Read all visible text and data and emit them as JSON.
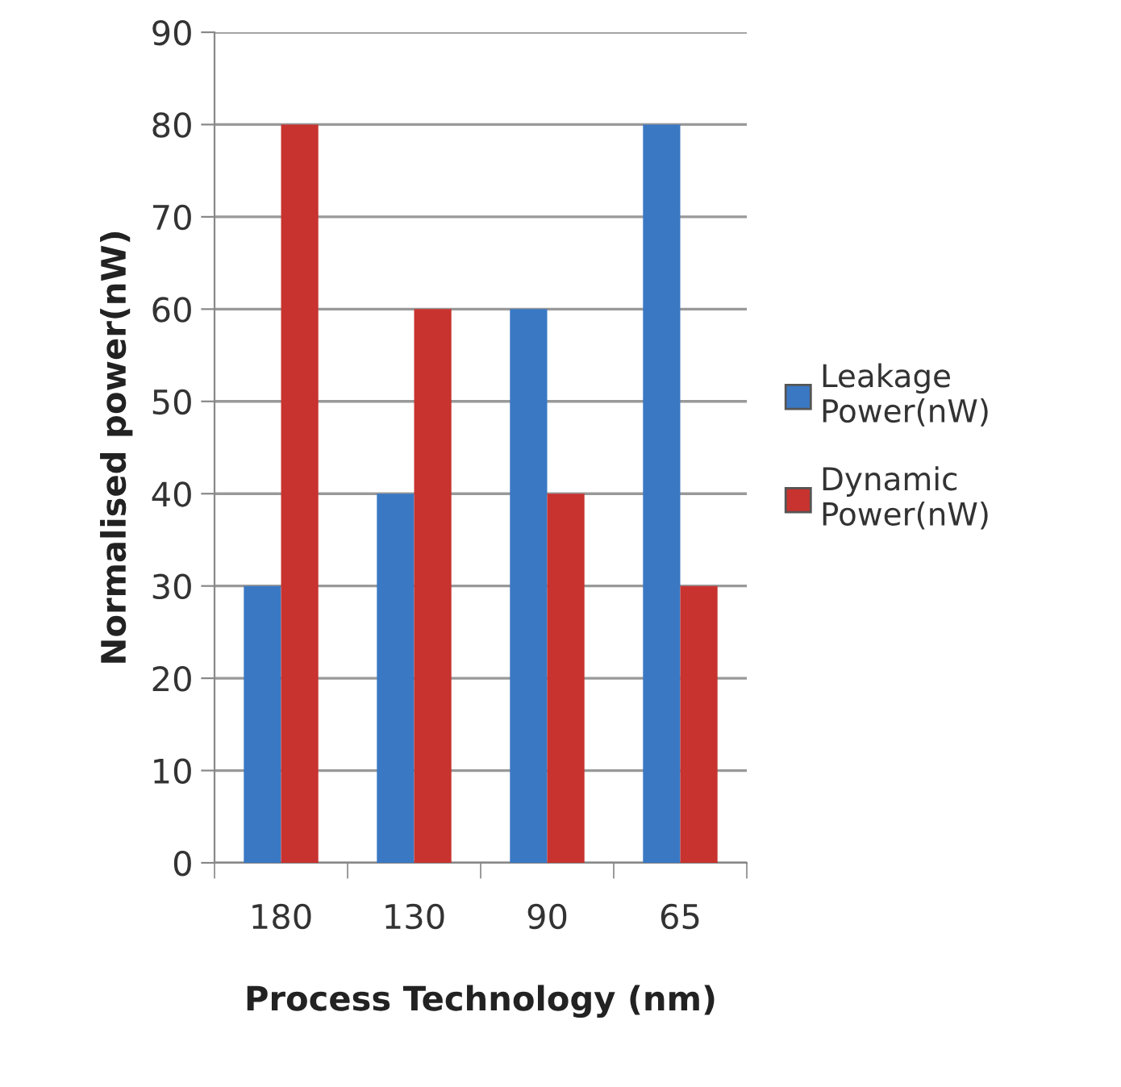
{
  "chart_data": {
    "type": "bar",
    "xlabel": "Process Technology (nm)",
    "ylabel": "Normalised power(nW)",
    "categories": [
      "180",
      "130",
      "90",
      "65"
    ],
    "series": [
      {
        "name": "Leakage\nPower(nW)",
        "color": "#3a78c3",
        "values": [
          30,
          40,
          60,
          80
        ]
      },
      {
        "name": "Dynamic\nPower(nW)",
        "color": "#c8332f",
        "values": [
          80,
          60,
          40,
          30
        ]
      }
    ],
    "ylim": [
      0,
      90
    ],
    "yticks": [
      0,
      10,
      20,
      30,
      40,
      50,
      60,
      70,
      80,
      90
    ],
    "grid": "y",
    "legend": "right"
  }
}
